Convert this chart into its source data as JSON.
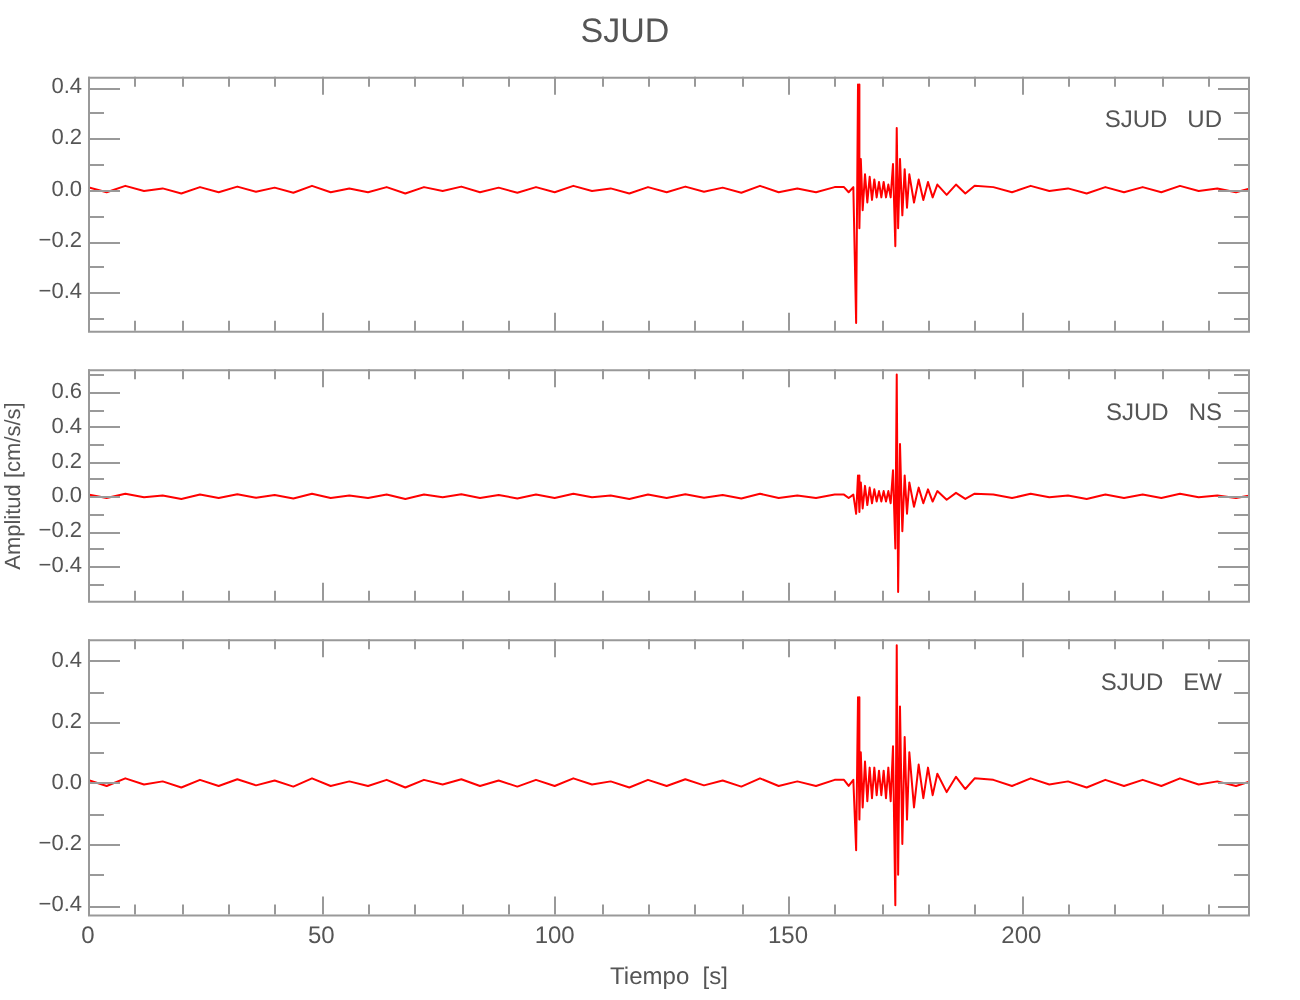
{
  "chart_data": [
    {
      "type": "line",
      "title": "SJUD",
      "annotations": [
        "SJUD   UD"
      ],
      "tick_labels": "y",
      "x": [
        0,
        4,
        8,
        12,
        16,
        20,
        24,
        28,
        32,
        36,
        40,
        44,
        48,
        52,
        56,
        60,
        64,
        68,
        72,
        76,
        80,
        84,
        88,
        92,
        96,
        100,
        104,
        108,
        112,
        116,
        120,
        124,
        128,
        132,
        136,
        140,
        144,
        148,
        152,
        156,
        160,
        162,
        163,
        164,
        164.6,
        165,
        165.3,
        165.6,
        166,
        166.5,
        167,
        167.5,
        168,
        168.5,
        169,
        169.5,
        170,
        170.5,
        171,
        171.5,
        172,
        172.5,
        173,
        173.3,
        173.6,
        174,
        174.5,
        175,
        175.5,
        176,
        177,
        178,
        179,
        180,
        181,
        182,
        184,
        186,
        188,
        190,
        194,
        198,
        202,
        206,
        210,
        214,
        218,
        222,
        226,
        230,
        234,
        238,
        242,
        246,
        249
      ],
      "series": [
        {
          "color": "#ff0000",
          "values": [
            0.01,
            -0.01,
            0.015,
            -0.005,
            0.005,
            -0.015,
            0.01,
            -0.01,
            0.012,
            -0.008,
            0.008,
            -0.012,
            0.015,
            -0.01,
            0.005,
            -0.01,
            0.01,
            -0.015,
            0.01,
            -0.005,
            0.012,
            -0.01,
            0.008,
            -0.012,
            0.01,
            -0.01,
            0.015,
            -0.005,
            0.005,
            -0.015,
            0.01,
            -0.01,
            0.012,
            -0.008,
            0.008,
            -0.012,
            0.015,
            -0.01,
            0.005,
            -0.01,
            0.01,
            0.01,
            -0.01,
            0.01,
            -0.52,
            0.41,
            -0.15,
            0.12,
            -0.08,
            0.06,
            -0.05,
            0.05,
            -0.04,
            0.04,
            -0.03,
            0.03,
            -0.03,
            0.03,
            -0.03,
            0.02,
            -0.03,
            0.1,
            -0.22,
            0.24,
            -0.15,
            0.12,
            -0.1,
            0.08,
            -0.07,
            0.06,
            -0.05,
            0.04,
            -0.04,
            0.03,
            -0.03,
            0.02,
            -0.02,
            0.02,
            -0.015,
            0.015,
            0.01,
            -0.01,
            0.015,
            -0.005,
            0.005,
            -0.015,
            0.01,
            -0.01,
            0.01,
            -0.01,
            0.015,
            -0.005,
            0.005,
            -0.01,
            0.005
          ]
        }
      ],
      "xlim": [
        0,
        249
      ],
      "ylim": [
        -0.55,
        0.44
      ],
      "xticks": [
        0,
        {
          "value": 10,
          "label": null
        },
        {
          "value": 20,
          "label": null
        },
        {
          "value": 30,
          "label": null
        },
        {
          "value": 40,
          "label": null
        },
        50,
        {
          "value": 60,
          "label": null
        },
        {
          "value": 70,
          "label": null
        },
        {
          "value": 80,
          "label": null
        },
        {
          "value": 90,
          "label": null
        },
        100,
        {
          "value": 110,
          "label": null
        },
        {
          "value": 120,
          "label": null
        },
        {
          "value": 130,
          "label": null
        },
        {
          "value": 140,
          "label": null
        },
        150,
        {
          "value": 160,
          "label": null
        },
        {
          "value": 170,
          "label": null
        },
        {
          "value": 180,
          "label": null
        },
        {
          "value": 190,
          "label": null
        },
        200,
        {
          "value": 210,
          "label": null
        },
        {
          "value": 220,
          "label": null
        },
        {
          "value": 230,
          "label": null
        },
        {
          "value": 240,
          "label": null
        }
      ],
      "yticks": [
        {
          "value": -0.5,
          "label": null
        },
        {
          "value": -0.4,
          "label": "−0.4"
        },
        {
          "value": -0.3,
          "label": null
        },
        {
          "value": -0.2,
          "label": "−0.2"
        },
        {
          "value": -0.1,
          "label": null
        },
        {
          "value": 0,
          "label": "0.0"
        },
        {
          "value": 0.1,
          "label": null
        },
        0.2,
        {
          "value": 0.3,
          "label": null
        },
        0.4
      ]
    },
    {
      "type": "line",
      "ylabel": "Amplitud  [cm/s/s]",
      "annotations": [
        "SJUD   NS"
      ],
      "tick_labels": "y",
      "x": [
        0,
        4,
        8,
        12,
        16,
        20,
        24,
        28,
        32,
        36,
        40,
        44,
        48,
        52,
        56,
        60,
        64,
        68,
        72,
        76,
        80,
        84,
        88,
        92,
        96,
        100,
        104,
        108,
        112,
        116,
        120,
        124,
        128,
        132,
        136,
        140,
        144,
        148,
        152,
        156,
        160,
        162,
        163,
        164,
        164.6,
        165,
        165.3,
        165.6,
        166,
        166.5,
        167,
        167.5,
        168,
        168.5,
        169,
        169.5,
        170,
        170.5,
        171,
        171.5,
        172,
        172.5,
        173,
        173.3,
        173.6,
        174,
        174.5,
        175,
        175.5,
        176,
        177,
        178,
        179,
        180,
        181,
        182,
        184,
        186,
        188,
        190,
        194,
        198,
        202,
        206,
        210,
        214,
        218,
        222,
        226,
        230,
        234,
        238,
        242,
        246,
        249
      ],
      "series": [
        {
          "color": "#ff0000",
          "values": [
            0.01,
            -0.01,
            0.015,
            -0.005,
            0.005,
            -0.015,
            0.01,
            -0.01,
            0.012,
            -0.008,
            0.008,
            -0.012,
            0.015,
            -0.01,
            0.005,
            -0.01,
            0.01,
            -0.015,
            0.01,
            -0.005,
            0.012,
            -0.01,
            0.008,
            -0.012,
            0.01,
            -0.01,
            0.015,
            -0.005,
            0.005,
            -0.015,
            0.01,
            -0.01,
            0.012,
            -0.008,
            0.008,
            -0.012,
            0.015,
            -0.01,
            0.005,
            -0.01,
            0.01,
            0.01,
            -0.01,
            0.01,
            -0.1,
            0.12,
            -0.09,
            0.08,
            -0.07,
            0.06,
            -0.05,
            0.05,
            -0.04,
            0.04,
            -0.03,
            0.03,
            -0.03,
            0.03,
            -0.03,
            0.03,
            -0.04,
            0.15,
            -0.3,
            0.7,
            -0.55,
            0.3,
            -0.2,
            0.12,
            -0.1,
            0.08,
            -0.06,
            0.05,
            -0.04,
            0.04,
            -0.03,
            0.03,
            -0.02,
            0.02,
            -0.015,
            0.015,
            0.01,
            -0.01,
            0.015,
            -0.005,
            0.005,
            -0.015,
            0.01,
            -0.01,
            0.01,
            -0.01,
            0.015,
            -0.005,
            0.005,
            -0.01,
            0.005
          ]
        }
      ],
      "xlim": [
        0,
        249
      ],
      "ylim": [
        -0.6,
        0.73
      ],
      "xticks": [
        0,
        {
          "value": 10,
          "label": null
        },
        {
          "value": 20,
          "label": null
        },
        {
          "value": 30,
          "label": null
        },
        {
          "value": 40,
          "label": null
        },
        50,
        {
          "value": 60,
          "label": null
        },
        {
          "value": 70,
          "label": null
        },
        {
          "value": 80,
          "label": null
        },
        {
          "value": 90,
          "label": null
        },
        100,
        {
          "value": 110,
          "label": null
        },
        {
          "value": 120,
          "label": null
        },
        {
          "value": 130,
          "label": null
        },
        {
          "value": 140,
          "label": null
        },
        150,
        {
          "value": 160,
          "label": null
        },
        {
          "value": 170,
          "label": null
        },
        {
          "value": 180,
          "label": null
        },
        {
          "value": 190,
          "label": null
        },
        200,
        {
          "value": 210,
          "label": null
        },
        {
          "value": 220,
          "label": null
        },
        {
          "value": 230,
          "label": null
        },
        {
          "value": 240,
          "label": null
        }
      ],
      "yticks": [
        {
          "value": -0.5,
          "label": null
        },
        {
          "value": -0.4,
          "label": "−0.4"
        },
        {
          "value": -0.3,
          "label": null
        },
        {
          "value": -0.2,
          "label": "−0.2"
        },
        {
          "value": -0.1,
          "label": null
        },
        {
          "value": 0,
          "label": "0.0"
        },
        {
          "value": 0.1,
          "label": null
        },
        0.2,
        {
          "value": 0.3,
          "label": null
        },
        0.4,
        {
          "value": 0.5,
          "label": null
        },
        0.6,
        {
          "value": 0.7,
          "label": null
        }
      ]
    },
    {
      "type": "line",
      "xlabel": "Tiempo  [s]",
      "annotations": [
        "SJUD   EW"
      ],
      "x": [
        0,
        4,
        8,
        12,
        16,
        20,
        24,
        28,
        32,
        36,
        40,
        44,
        48,
        52,
        56,
        60,
        64,
        68,
        72,
        76,
        80,
        84,
        88,
        92,
        96,
        100,
        104,
        108,
        112,
        116,
        120,
        124,
        128,
        132,
        136,
        140,
        144,
        148,
        152,
        156,
        160,
        162,
        163,
        164,
        164.6,
        165,
        165.3,
        165.6,
        166,
        166.5,
        167,
        167.5,
        168,
        168.5,
        169,
        169.5,
        170,
        170.5,
        171,
        171.5,
        172,
        172.5,
        173,
        173.3,
        173.6,
        174,
        174.5,
        175,
        175.5,
        176,
        177,
        178,
        179,
        180,
        181,
        182,
        184,
        186,
        188,
        190,
        194,
        198,
        202,
        206,
        210,
        214,
        218,
        222,
        226,
        230,
        234,
        238,
        242,
        246,
        249
      ],
      "series": [
        {
          "color": "#ff0000",
          "values": [
            0.01,
            -0.01,
            0.015,
            -0.005,
            0.005,
            -0.015,
            0.01,
            -0.01,
            0.012,
            -0.008,
            0.008,
            -0.012,
            0.015,
            -0.01,
            0.005,
            -0.01,
            0.01,
            -0.015,
            0.01,
            -0.005,
            0.012,
            -0.01,
            0.008,
            -0.012,
            0.01,
            -0.01,
            0.015,
            -0.005,
            0.005,
            -0.015,
            0.01,
            -0.01,
            0.012,
            -0.008,
            0.008,
            -0.012,
            0.015,
            -0.01,
            0.005,
            -0.01,
            0.01,
            0.01,
            -0.01,
            0.01,
            -0.22,
            0.28,
            -0.12,
            0.1,
            -0.08,
            0.07,
            -0.06,
            0.05,
            -0.05,
            0.05,
            -0.04,
            0.04,
            -0.04,
            0.04,
            -0.05,
            0.05,
            -0.06,
            0.12,
            -0.4,
            0.45,
            -0.3,
            0.25,
            -0.2,
            0.15,
            -0.12,
            0.1,
            -0.08,
            0.06,
            -0.05,
            0.05,
            -0.04,
            0.03,
            -0.03,
            0.02,
            -0.02,
            0.015,
            0.01,
            -0.01,
            0.015,
            -0.005,
            0.005,
            -0.015,
            0.01,
            -0.01,
            0.01,
            -0.01,
            0.015,
            -0.005,
            0.005,
            -0.01,
            0.005
          ]
        }
      ],
      "xlim": [
        0,
        249
      ],
      "ylim": [
        -0.43,
        0.47
      ],
      "xticks": [
        0,
        {
          "value": 10,
          "label": null
        },
        {
          "value": 20,
          "label": null
        },
        {
          "value": 30,
          "label": null
        },
        {
          "value": 40,
          "label": null
        },
        50,
        {
          "value": 60,
          "label": null
        },
        {
          "value": 70,
          "label": null
        },
        {
          "value": 80,
          "label": null
        },
        {
          "value": 90,
          "label": null
        },
        100,
        {
          "value": 110,
          "label": null
        },
        {
          "value": 120,
          "label": null
        },
        {
          "value": 130,
          "label": null
        },
        {
          "value": 140,
          "label": null
        },
        150,
        {
          "value": 160,
          "label": null
        },
        {
          "value": 170,
          "label": null
        },
        {
          "value": 180,
          "label": null
        },
        {
          "value": 190,
          "label": null
        },
        200,
        {
          "value": 210,
          "label": null
        },
        {
          "value": 220,
          "label": null
        },
        {
          "value": 230,
          "label": null
        },
        {
          "value": 240,
          "label": null
        }
      ],
      "yticks": [
        {
          "value": -0.4,
          "label": "−0.4"
        },
        {
          "value": -0.3,
          "label": null
        },
        {
          "value": -0.2,
          "label": "−0.2"
        },
        {
          "value": -0.1,
          "label": null
        },
        {
          "value": 0,
          "label": "0.0"
        },
        {
          "value": 0.1,
          "label": null
        },
        0.2,
        {
          "value": 0.3,
          "label": null
        },
        0.4
      ]
    }
  ]
}
